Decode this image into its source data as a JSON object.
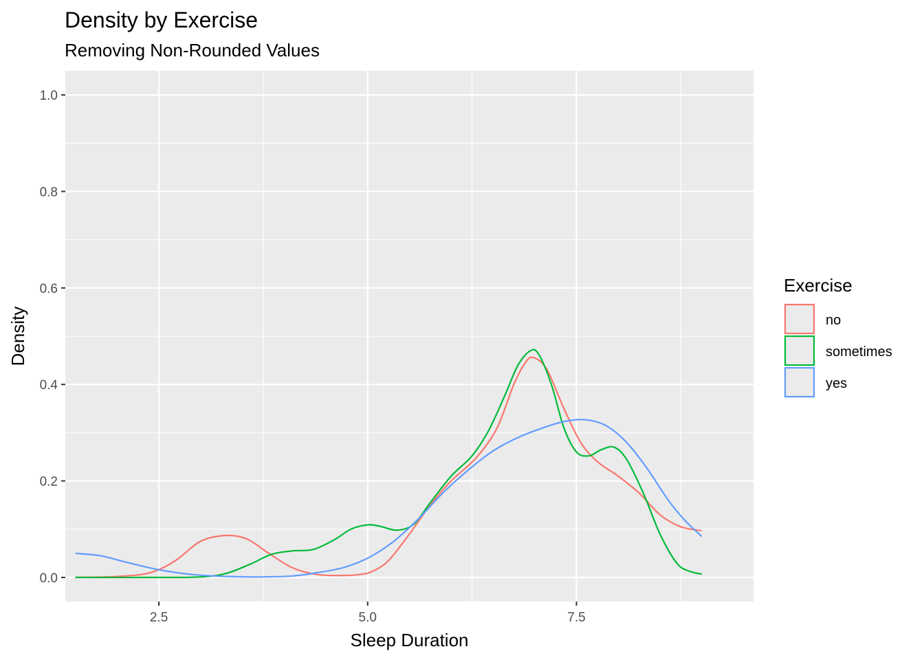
{
  "chart_data": {
    "type": "line",
    "title": "Density by Exercise",
    "subtitle": "Removing Non-Rounded Values",
    "xlabel": "Sleep Duration",
    "ylabel": "Density",
    "xlim": [
      1.38,
      9.62
    ],
    "ylim": [
      -0.05,
      1.05
    ],
    "x_ticks": [
      2.5,
      5.0,
      7.5
    ],
    "x_tick_labels": [
      "2.5",
      "5.0",
      "7.5"
    ],
    "x_minor_ticks": [
      1.25,
      3.75,
      6.25,
      8.75
    ],
    "y_ticks": [
      0.0,
      0.2,
      0.4,
      0.6,
      0.8,
      1.0
    ],
    "y_tick_labels": [
      "0.0",
      "0.2",
      "0.4",
      "0.6",
      "0.8",
      "1.0"
    ],
    "y_minor_ticks": [
      0.1,
      0.3,
      0.5,
      0.7,
      0.9
    ],
    "grid": true,
    "legend": {
      "title": "Exercise",
      "position": "right"
    },
    "colors": {
      "panel_bg": "#ebebeb",
      "grid": "#ffffff"
    },
    "series": [
      {
        "name": "no",
        "color": "#F8766D",
        "x": [
          1.5,
          2.0,
          2.4,
          2.7,
          3.0,
          3.3,
          3.55,
          3.8,
          4.1,
          4.4,
          4.7,
          4.9,
          5.05,
          5.25,
          5.5,
          5.75,
          6.0,
          6.3,
          6.55,
          6.75,
          6.9,
          7.0,
          7.15,
          7.35,
          7.55,
          7.75,
          8.0,
          8.25,
          8.5,
          8.75,
          9.0
        ],
        "y": [
          0.0,
          0.002,
          0.01,
          0.035,
          0.075,
          0.087,
          0.08,
          0.052,
          0.02,
          0.006,
          0.004,
          0.006,
          0.012,
          0.035,
          0.09,
          0.15,
          0.2,
          0.248,
          0.31,
          0.4,
          0.448,
          0.455,
          0.43,
          0.35,
          0.28,
          0.24,
          0.21,
          0.175,
          0.13,
          0.105,
          0.097
        ]
      },
      {
        "name": "sometimes",
        "color": "#00BA38",
        "x": [
          1.5,
          2.5,
          3.0,
          3.3,
          3.6,
          3.85,
          4.1,
          4.35,
          4.6,
          4.8,
          5.0,
          5.15,
          5.35,
          5.55,
          5.75,
          6.0,
          6.25,
          6.45,
          6.65,
          6.8,
          6.95,
          7.05,
          7.2,
          7.35,
          7.5,
          7.65,
          7.8,
          7.95,
          8.1,
          8.3,
          8.5,
          8.7,
          8.85,
          9.0
        ],
        "y": [
          0.0,
          0.0,
          0.001,
          0.008,
          0.028,
          0.048,
          0.055,
          0.058,
          0.078,
          0.1,
          0.109,
          0.106,
          0.098,
          0.11,
          0.155,
          0.21,
          0.252,
          0.305,
          0.38,
          0.44,
          0.47,
          0.462,
          0.4,
          0.31,
          0.26,
          0.252,
          0.265,
          0.27,
          0.245,
          0.175,
          0.09,
          0.03,
          0.013,
          0.007
        ]
      },
      {
        "name": "yes",
        "color": "#619CFF",
        "x": [
          1.5,
          1.8,
          2.1,
          2.5,
          2.9,
          3.3,
          3.7,
          4.1,
          4.4,
          4.7,
          5.0,
          5.3,
          5.6,
          5.9,
          6.2,
          6.5,
          6.8,
          7.1,
          7.35,
          7.6,
          7.85,
          8.1,
          8.35,
          8.6,
          8.8,
          9.0
        ],
        "y": [
          0.05,
          0.045,
          0.032,
          0.016,
          0.006,
          0.002,
          0.001,
          0.003,
          0.01,
          0.02,
          0.04,
          0.073,
          0.12,
          0.175,
          0.222,
          0.262,
          0.29,
          0.31,
          0.323,
          0.327,
          0.315,
          0.28,
          0.225,
          0.16,
          0.118,
          0.085
        ]
      }
    ]
  }
}
